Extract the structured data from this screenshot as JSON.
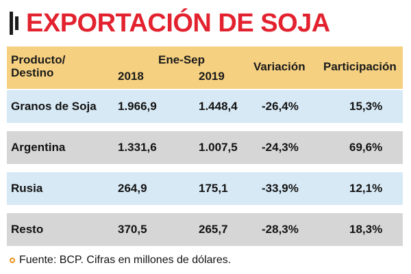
{
  "title": "EXPORTACIÓN DE SOJA",
  "table": {
    "header": {
      "product_line1": "Producto/",
      "product_line2": "Destino",
      "period": "Ene-Sep",
      "year1": "2018",
      "year2": "2019",
      "variation": "Variación",
      "share": "Participación"
    },
    "rows": [
      {
        "name": "Granos de Soja",
        "y2018": "1.966,9",
        "y2019": "1.448,4",
        "variation": "-26,4%",
        "share": "15,3%"
      },
      {
        "name": "Argentina",
        "y2018": "1.331,6",
        "y2019": "1.007,5",
        "variation": "-24,3%",
        "share": "69,6%"
      },
      {
        "name": "Rusia",
        "y2018": "264,9",
        "y2019": "175,1",
        "variation": "-33,9%",
        "share": "12,1%"
      },
      {
        "name": "Resto",
        "y2018": "370,5",
        "y2019": "265,7",
        "variation": "-28,3%",
        "share": "18,3%"
      }
    ]
  },
  "source": "Fuente: BCP. Cifras en millones de dólares.",
  "colors": {
    "title": "#e3222f",
    "header_bg": "#f5d080",
    "row_blue": "#d7e9f5",
    "row_gray": "#d6d6d6",
    "source_dot": "#e8901a"
  }
}
